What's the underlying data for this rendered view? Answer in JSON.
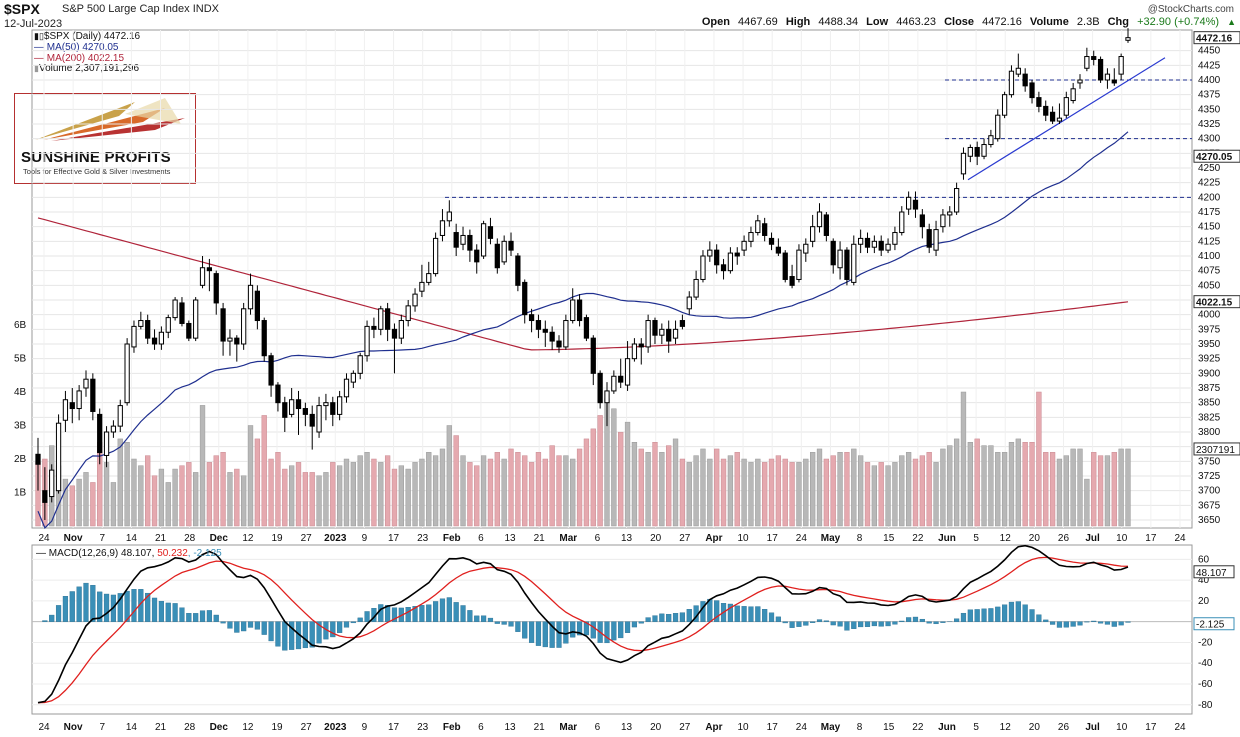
{
  "header": {
    "symbol": "$SPX",
    "name": "S&P 500 Large Cap Index",
    "exchange": "INDX",
    "date": "12-Jul-2023",
    "credit": "@StockCharts.com",
    "open_label": "Open",
    "open": "4467.69",
    "high_label": "High",
    "high": "4488.34",
    "low_label": "Low",
    "low": "4463.23",
    "close_label": "Close",
    "close": "4472.16",
    "volume_label": "Volume",
    "volume": "2.3B",
    "chg_label": "Chg",
    "chg": "+32.90 (+0.74%)"
  },
  "legend": {
    "price": "$SPX (Daily) 4472.16",
    "ma50": "MA(50) 4270.05",
    "ma200": "MA(200) 4022.15",
    "volume": "Volume 2,307,191,296",
    "macd_name": "MACD(12,26,9)",
    "macd_value": "48.107",
    "macd_signal": "50.232",
    "macd_hist": "-2.125"
  },
  "logo": {
    "title": "SUNSHINE PROFITS",
    "tagline": "Tools for Effective Gold & Silver Investments"
  },
  "colors": {
    "up": "#000000",
    "down": "#000000",
    "ma50": "#1f2f8f",
    "ma200": "#b0243a",
    "vol_up": "#b8b8b8",
    "vol_down": "#e5a9af",
    "hist": "#3a8fb7",
    "macd": "#000000",
    "signal": "#e0201e",
    "hline": "#1f2f8f",
    "trend": "#2a3ad0"
  },
  "chart_data": {
    "type": "candlestick",
    "price_ticks": [
      3650,
      3675,
      3700,
      3725,
      3750,
      3775,
      3800,
      3825,
      3850,
      3875,
      3900,
      3925,
      3950,
      3975,
      4000,
      4025,
      4050,
      4075,
      4100,
      4125,
      4150,
      4175,
      4200,
      4225,
      4250,
      4275,
      4300,
      4325,
      4350,
      4375,
      4400,
      4425,
      4450
    ],
    "price_labels": {
      "last": "4472.16",
      "ma50": "4270.05",
      "ma200": "4022.15",
      "volume": "2307191"
    },
    "volume_ticks": [
      "1B",
      "2B",
      "3B",
      "4B",
      "5B",
      "6B"
    ],
    "macd_ticks": [
      60,
      40,
      20,
      -20,
      -40,
      -60,
      -80
    ],
    "macd_labels": {
      "macd": "48.107",
      "hist": "-2.125"
    },
    "x_labels": [
      "24",
      "Nov",
      "7",
      "14",
      "21",
      "28",
      "Dec",
      "12",
      "19",
      "27",
      "2023",
      "9",
      "17",
      "23",
      "Feb",
      "6",
      "13",
      "21",
      "Mar",
      "6",
      "13",
      "20",
      "27",
      "Apr",
      "10",
      "17",
      "24",
      "May",
      "8",
      "15",
      "22",
      "Jun",
      "5",
      "12",
      "20",
      "26",
      "Jul",
      "10",
      "17",
      "24"
    ],
    "horizontal_levels": [
      4200,
      4300,
      4400
    ],
    "trendline": {
      "from": [
        "2023-06-01",
        4230
      ],
      "to": [
        "2023-07-18",
        4435
      ]
    },
    "candles": [
      [
        3762,
        3745,
        3790,
        3700,
        1.9
      ],
      [
        3700,
        3680,
        3740,
        3650,
        2.0
      ],
      [
        3690,
        3735,
        3745,
        3680,
        2.4
      ],
      [
        3700,
        3815,
        3830,
        3695,
        1.8
      ],
      [
        3820,
        3855,
        3870,
        3800,
        1.4
      ],
      [
        3850,
        3840,
        3875,
        3815,
        1.2
      ],
      [
        3840,
        3870,
        3880,
        3820,
        1.4
      ],
      [
        3875,
        3890,
        3905,
        3860,
        1.6
      ],
      [
        3890,
        3835,
        3900,
        3820,
        1.3
      ],
      [
        3830,
        3765,
        3840,
        3745,
        2.5
      ],
      [
        3760,
        3800,
        3810,
        3740,
        1.9
      ],
      [
        3800,
        3810,
        3820,
        3790,
        1.3
      ],
      [
        3810,
        3845,
        3855,
        3800,
        2.6
      ],
      [
        3850,
        3950,
        3960,
        3845,
        2.5
      ],
      [
        3945,
        3980,
        3990,
        3935,
        2.0
      ],
      [
        3980,
        3990,
        4005,
        3975,
        1.8
      ],
      [
        3990,
        3960,
        4000,
        3950,
        2.1
      ],
      [
        3960,
        3950,
        3975,
        3940,
        1.5
      ],
      [
        3950,
        3970,
        3980,
        3940,
        1.7
      ],
      [
        3970,
        3995,
        4000,
        3960,
        1.3
      ],
      [
        3995,
        4025,
        4030,
        3990,
        1.7
      ],
      [
        4020,
        3985,
        4030,
        3980,
        1.8
      ],
      [
        3985,
        3960,
        3990,
        3955,
        1.9
      ],
      [
        3960,
        4025,
        4030,
        3955,
        1.6
      ],
      [
        4050,
        4080,
        4100,
        4045,
        3.6
      ],
      [
        4080,
        4075,
        4095,
        4040,
        1.9
      ],
      [
        4070,
        4020,
        4075,
        4000,
        2.1
      ],
      [
        4010,
        3955,
        4020,
        3930,
        2.2
      ],
      [
        3955,
        3960,
        3975,
        3930,
        1.6
      ],
      [
        3960,
        3950,
        3965,
        3920,
        1.7
      ],
      [
        3950,
        4010,
        4020,
        3940,
        1.5
      ],
      [
        4010,
        4050,
        4070,
        4000,
        3.0
      ],
      [
        4040,
        3990,
        4050,
        3975,
        2.6
      ],
      [
        3990,
        3930,
        3995,
        3920,
        3.3
      ],
      [
        3930,
        3880,
        3935,
        3860,
        2.0
      ],
      [
        3880,
        3850,
        3885,
        3835,
        2.2
      ],
      [
        3850,
        3825,
        3860,
        3800,
        1.7
      ],
      [
        3830,
        3855,
        3875,
        3825,
        1.8
      ],
      [
        3855,
        3840,
        3870,
        3795,
        1.9
      ],
      [
        3840,
        3830,
        3850,
        3810,
        1.6
      ],
      [
        3830,
        3810,
        3845,
        3770,
        1.6
      ],
      [
        3800,
        3845,
        3860,
        3790,
        1.5
      ],
      [
        3845,
        3850,
        3865,
        3820,
        1.6
      ],
      [
        3850,
        3830,
        3860,
        3810,
        1.9
      ],
      [
        3830,
        3860,
        3870,
        3820,
        1.8
      ],
      [
        3860,
        3890,
        3900,
        3850,
        2.0
      ],
      [
        3885,
        3900,
        3905,
        3875,
        1.9
      ],
      [
        3900,
        3930,
        3935,
        3890,
        2.1
      ],
      [
        3930,
        3980,
        3990,
        3920,
        2.2
      ],
      [
        3980,
        3975,
        3995,
        3960,
        2.0
      ],
      [
        3975,
        4010,
        4015,
        3965,
        1.9
      ],
      [
        4010,
        3975,
        4020,
        3955,
        2.1
      ],
      [
        3975,
        3960,
        3985,
        3900,
        1.7
      ],
      [
        3960,
        3990,
        4000,
        3950,
        1.8
      ],
      [
        3990,
        4015,
        4025,
        3980,
        1.7
      ],
      [
        4015,
        4035,
        4045,
        4005,
        1.9
      ],
      [
        4040,
        4055,
        4085,
        4030,
        2.0
      ],
      [
        4055,
        4070,
        4090,
        4050,
        2.2
      ],
      [
        4070,
        4130,
        4140,
        4065,
        2.1
      ],
      [
        4135,
        4160,
        4180,
        4125,
        2.3
      ],
      [
        4160,
        4175,
        4195,
        4150,
        3.0
      ],
      [
        4140,
        4115,
        4155,
        4100,
        2.7
      ],
      [
        4120,
        4135,
        4150,
        4110,
        2.1
      ],
      [
        4135,
        4110,
        4145,
        4090,
        1.9
      ],
      [
        4110,
        4090,
        4120,
        4070,
        1.8
      ],
      [
        4100,
        4155,
        4160,
        4095,
        2.1
      ],
      [
        4150,
        4130,
        4165,
        4120,
        2.0
      ],
      [
        4120,
        4080,
        4130,
        4070,
        2.2
      ],
      [
        4090,
        4125,
        4135,
        4085,
        2.0
      ],
      [
        4125,
        4110,
        4140,
        4100,
        2.3
      ],
      [
        4100,
        4050,
        4105,
        4040,
        2.2
      ],
      [
        4055,
        4000,
        4060,
        3985,
        2.1
      ],
      [
        4000,
        3990,
        4010,
        3970,
        1.9
      ],
      [
        3990,
        3975,
        4000,
        3960,
        2.2
      ],
      [
        3975,
        3970,
        3990,
        3945,
        2.0
      ],
      [
        3970,
        3955,
        3980,
        3940,
        2.4
      ],
      [
        3955,
        3945,
        3965,
        3935,
        2.1
      ],
      [
        3945,
        3990,
        4000,
        3940,
        2.1
      ],
      [
        3990,
        4025,
        4045,
        3985,
        2.0
      ],
      [
        4025,
        3990,
        4035,
        3980,
        2.3
      ],
      [
        3995,
        3960,
        4000,
        3955,
        2.6
      ],
      [
        3960,
        3900,
        3965,
        3880,
        2.9
      ],
      [
        3900,
        3850,
        3905,
        3840,
        3.3
      ],
      [
        3850,
        3870,
        3885,
        3810,
        3.8
      ],
      [
        3870,
        3895,
        3905,
        3865,
        3.5
      ],
      [
        3895,
        3885,
        3925,
        3875,
        2.8
      ],
      [
        3880,
        3925,
        3955,
        3870,
        3.1
      ],
      [
        3925,
        3950,
        3960,
        3920,
        2.5
      ],
      [
        3950,
        3945,
        3960,
        3915,
        2.3
      ],
      [
        3945,
        3990,
        4000,
        3935,
        2.2
      ],
      [
        3990,
        3965,
        3995,
        3950,
        2.5
      ],
      [
        3965,
        3975,
        3985,
        3950,
        2.2
      ],
      [
        3975,
        3955,
        3990,
        3935,
        2.4
      ],
      [
        3960,
        3975,
        3990,
        3950,
        2.6
      ],
      [
        3990,
        3980,
        4000,
        3975,
        2.0
      ],
      [
        4010,
        4030,
        4040,
        4000,
        1.9
      ],
      [
        4030,
        4060,
        4075,
        4025,
        2.1
      ],
      [
        4060,
        4100,
        4110,
        4055,
        2.3
      ],
      [
        4100,
        4110,
        4125,
        4090,
        2.0
      ],
      [
        4110,
        4085,
        4120,
        4070,
        2.3
      ],
      [
        4085,
        4075,
        4095,
        4060,
        2.0
      ],
      [
        4075,
        4105,
        4115,
        4070,
        2.1
      ],
      [
        4105,
        4100,
        4115,
        4085,
        2.2
      ],
      [
        4110,
        4125,
        4135,
        4100,
        2.0
      ],
      [
        4125,
        4140,
        4150,
        4115,
        1.9
      ],
      [
        4140,
        4160,
        4170,
        4135,
        2.0
      ],
      [
        4155,
        4135,
        4165,
        4125,
        1.9
      ],
      [
        4130,
        4120,
        4140,
        4110,
        2.0
      ],
      [
        4115,
        4105,
        4130,
        4100,
        2.1
      ],
      [
        4105,
        4060,
        4110,
        4055,
        2.0
      ],
      [
        4065,
        4050,
        4085,
        4045,
        1.9
      ],
      [
        4060,
        4110,
        4120,
        4055,
        1.9
      ],
      [
        4105,
        4120,
        4130,
        4090,
        2.0
      ],
      [
        4125,
        4150,
        4170,
        4115,
        2.2
      ],
      [
        4150,
        4175,
        4190,
        4140,
        2.3
      ],
      [
        4170,
        4135,
        4175,
        4125,
        2.0
      ],
      [
        4125,
        4085,
        4130,
        4070,
        2.1
      ],
      [
        4080,
        4110,
        4125,
        4060,
        2.2
      ],
      [
        4110,
        4060,
        4115,
        4050,
        2.2
      ],
      [
        4055,
        4120,
        4135,
        4050,
        2.3
      ],
      [
        4120,
        4130,
        4145,
        4105,
        2.1
      ],
      [
        4130,
        4115,
        4140,
        4105,
        1.9
      ],
      [
        4115,
        4125,
        4135,
        4105,
        1.8
      ],
      [
        4125,
        4110,
        4135,
        4100,
        1.9
      ],
      [
        4110,
        4120,
        4130,
        4105,
        1.8
      ],
      [
        4120,
        4140,
        4150,
        4110,
        1.9
      ],
      [
        4140,
        4175,
        4185,
        4135,
        2.1
      ],
      [
        4180,
        4200,
        4210,
        4170,
        2.2
      ],
      [
        4195,
        4180,
        4210,
        4165,
        2.0
      ],
      [
        4170,
        4150,
        4180,
        4130,
        2.1
      ],
      [
        4145,
        4115,
        4155,
        4105,
        2.2
      ],
      [
        4110,
        4145,
        4160,
        4100,
        1.9
      ],
      [
        4150,
        4170,
        4180,
        4140,
        2.3
      ],
      [
        4170,
        4175,
        4185,
        4150,
        2.4
      ],
      [
        4175,
        4215,
        4225,
        4170,
        2.6
      ],
      [
        4240,
        4275,
        4285,
        4230,
        4.0
      ],
      [
        4270,
        4285,
        4290,
        4260,
        2.5
      ],
      [
        4285,
        4270,
        4295,
        4255,
        2.6
      ],
      [
        4270,
        4290,
        4300,
        4265,
        2.4
      ],
      [
        4290,
        4305,
        4315,
        4285,
        2.4
      ],
      [
        4300,
        4340,
        4350,
        4295,
        2.2
      ],
      [
        4340,
        4375,
        4380,
        4335,
        2.2
      ],
      [
        4375,
        4415,
        4425,
        4370,
        2.5
      ],
      [
        4410,
        4420,
        4445,
        4405,
        2.6
      ],
      [
        4410,
        4390,
        4420,
        4380,
        2.5
      ],
      [
        4395,
        4370,
        4400,
        4360,
        2.5
      ],
      [
        4370,
        4355,
        4380,
        4345,
        4.0
      ],
      [
        4355,
        4340,
        4365,
        4330,
        2.2
      ],
      [
        4345,
        4330,
        4355,
        4325,
        2.2
      ],
      [
        4330,
        4335,
        4360,
        4325,
        2.0
      ],
      [
        4340,
        4370,
        4380,
        4335,
        2.1
      ],
      [
        4365,
        4385,
        4395,
        4360,
        2.3
      ],
      [
        4395,
        4400,
        4410,
        4385,
        2.3
      ],
      [
        4420,
        4440,
        4455,
        4415,
        1.4
      ],
      [
        4440,
        4435,
        4450,
        4425,
        2.2
      ],
      [
        4435,
        4400,
        4440,
        4395,
        2.1
      ],
      [
        4400,
        4410,
        4420,
        4385,
        2.1
      ],
      [
        4400,
        4395,
        4420,
        4390,
        2.2
      ],
      [
        4410,
        4440,
        4445,
        4400,
        2.3
      ],
      [
        4467.69,
        4472.16,
        4488.34,
        4463.23,
        2.3
      ]
    ]
  }
}
